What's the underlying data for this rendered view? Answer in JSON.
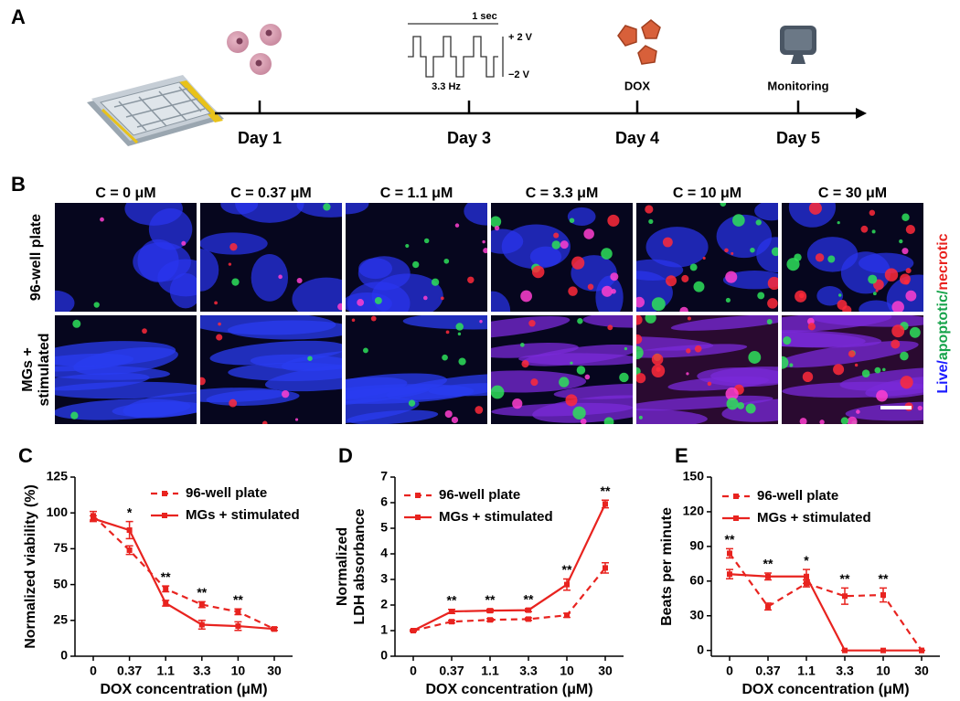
{
  "panels": [
    "A",
    "B",
    "C",
    "D",
    "E"
  ],
  "timeline": {
    "days": [
      "Day 1",
      "Day 3",
      "Day 4",
      "Day 5"
    ],
    "waveform": {
      "period": "1 sec",
      "high": "+ 2 V",
      "low": "−2 V",
      "frequency": "3.3 Hz"
    },
    "dox_label": "DOX",
    "monitoring_label": "Monitoring"
  },
  "microscopy": {
    "columns": [
      "C = 0 μM",
      "C = 0.37 μM",
      "C = 1.1 μM",
      "C = 3.3 μM",
      "C = 10 μM",
      "C = 30 μM"
    ],
    "rows": [
      [
        "96-well plate"
      ],
      [
        "MGs +",
        "stimulated"
      ]
    ],
    "stain_legend": [
      {
        "text": "Live",
        "color": "#1a1aff"
      },
      {
        "text": "/",
        "color": "#1a1aff"
      },
      {
        "text": "apoptotic",
        "color": "#16a34a"
      },
      {
        "text": "/",
        "color": "#16a34a"
      },
      {
        "text": "necrotic",
        "color": "#e8231f"
      }
    ]
  },
  "chart_data": [
    {
      "type": "line",
      "ylabel": [
        "Normalized viability (%)"
      ],
      "xlabel": "DOX concentration (μM)",
      "categories": [
        "0",
        "0.37",
        "1.1",
        "3.3",
        "10",
        "30"
      ],
      "ylim": [
        0,
        125
      ],
      "yticks": [
        0,
        25,
        50,
        75,
        100,
        125
      ],
      "annotations": [
        null,
        "*",
        "**",
        "**",
        "**",
        null
      ],
      "series": [
        {
          "name": "96-well plate",
          "color": "#e8231f",
          "dashed": true,
          "values": [
            98,
            74,
            47,
            36,
            31,
            19
          ],
          "errors": [
            3,
            3,
            2,
            2,
            2,
            1
          ]
        },
        {
          "name": "MGs + stimulated",
          "color": "#e8231f",
          "dashed": false,
          "values": [
            96,
            88,
            37,
            22,
            21,
            19
          ],
          "errors": [
            2,
            6,
            2,
            3,
            3,
            1
          ]
        }
      ]
    },
    {
      "type": "line",
      "ylabel": [
        "Normalized",
        "LDH absorbance"
      ],
      "xlabel": "DOX concentration (μM)",
      "categories": [
        "0",
        "0.37",
        "1.1",
        "3.3",
        "10",
        "30"
      ],
      "ylim": [
        0,
        7
      ],
      "yticks": [
        0,
        1,
        2,
        3,
        4,
        5,
        6,
        7
      ],
      "annotations": [
        null,
        "**",
        "**",
        "**",
        "**",
        "**"
      ],
      "series": [
        {
          "name": "96-well plate",
          "color": "#e8231f",
          "dashed": true,
          "values": [
            1.0,
            1.35,
            1.42,
            1.45,
            1.6,
            3.45
          ],
          "errors": [
            0.03,
            0.05,
            0.05,
            0.05,
            0.08,
            0.2
          ]
        },
        {
          "name": "MGs + stimulated",
          "color": "#e8231f",
          "dashed": false,
          "values": [
            1.0,
            1.75,
            1.78,
            1.8,
            2.8,
            5.95
          ],
          "errors": [
            0.03,
            0.08,
            0.06,
            0.06,
            0.22,
            0.15
          ]
        }
      ]
    },
    {
      "type": "line",
      "ylabel": [
        "Beats per minute"
      ],
      "xlabel": "DOX concentration (μM)",
      "categories": [
        "0",
        "0.37",
        "1.1",
        "3.3",
        "10",
        "30"
      ],
      "ylim": [
        -5,
        150
      ],
      "yticks": [
        0,
        30,
        60,
        90,
        120,
        150
      ],
      "annotations": [
        "**",
        "**",
        "*",
        "**",
        "**",
        null
      ],
      "series": [
        {
          "name": "96-well plate",
          "color": "#e8231f",
          "dashed": true,
          "values": [
            84,
            38,
            58,
            47,
            48,
            0
          ],
          "errors": [
            4,
            3,
            3,
            7,
            6,
            0
          ]
        },
        {
          "name": "MGs + stimulated",
          "color": "#e8231f",
          "dashed": false,
          "values": [
            66,
            64,
            64,
            0,
            0,
            0
          ],
          "errors": [
            4,
            3,
            6,
            0,
            0,
            0
          ]
        }
      ]
    }
  ]
}
